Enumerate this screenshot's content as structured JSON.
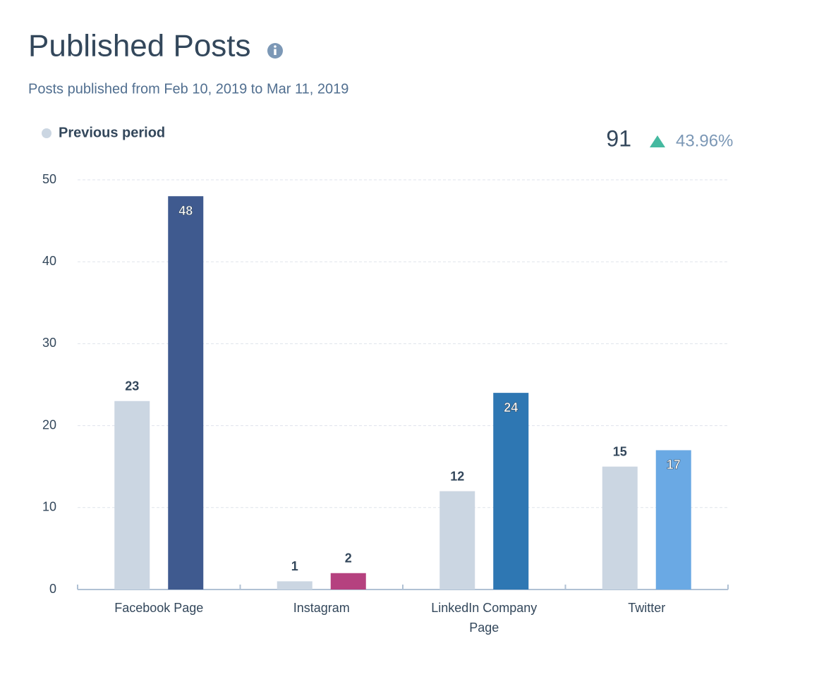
{
  "chart_data": {
    "type": "bar",
    "title": "Published Posts",
    "subtitle": "Posts published from Feb 10, 2019 to Mar 11, 2019",
    "total": 91,
    "change": {
      "value": 43.96,
      "label": "43.96%"
    },
    "categories": [
      "Facebook Page",
      "Instagram",
      "LinkedIn Company Page",
      "Twitter"
    ],
    "series": [
      {
        "name": "Previous period",
        "color": "#cbd6e2",
        "values": [
          23,
          1,
          12,
          15
        ]
      },
      {
        "colors": [
          "#3f5a8f",
          "#b5417f",
          "#2e77b3",
          "#6aa9e4"
        ],
        "values": [
          48,
          2,
          24,
          17
        ]
      }
    ],
    "ylim": [
      0,
      50
    ],
    "yticks": [
      0,
      10,
      20,
      30,
      40,
      50
    ],
    "grid": true,
    "legend": "top-left"
  }
}
